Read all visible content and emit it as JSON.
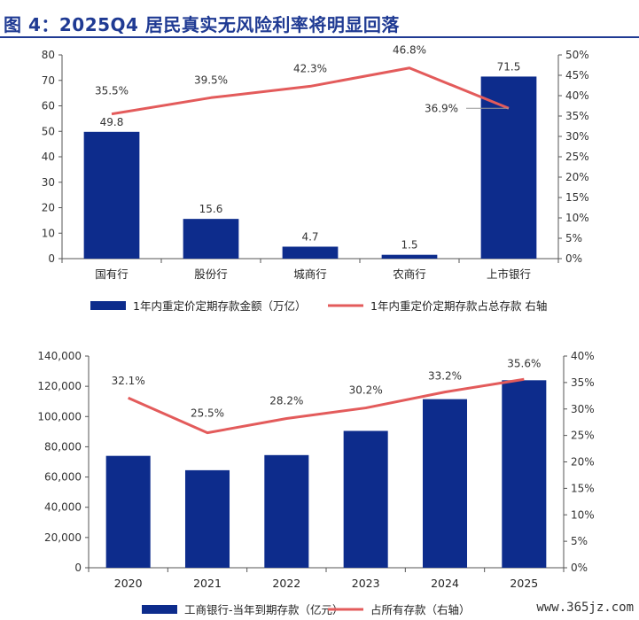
{
  "figure_title": "图 4：2025Q4 居民真实无风险利率将明显回落",
  "watermark": "www.365jz.com",
  "colors": {
    "bar": "#0d2c8c",
    "line": "#e35b5b",
    "title": "#1f3a93",
    "axis": "#555555"
  },
  "chart_data": [
    {
      "type": "bar",
      "categories": [
        "国有行",
        "股份行",
        "城商行",
        "农商行",
        "上市银行"
      ],
      "series": [
        {
          "name": "1年内重定价定期存款金额（万亿）",
          "axis": "left",
          "values": [
            49.8,
            15.6,
            4.7,
            1.5,
            71.5
          ],
          "labels": [
            "49.8",
            "15.6",
            "4.7",
            "1.5",
            "71.5"
          ]
        },
        {
          "name": "1年内重定价定期存款占总存款 右轴",
          "type": "line",
          "axis": "right",
          "values": [
            35.5,
            39.5,
            42.3,
            46.8,
            36.9
          ],
          "labels": [
            "35.5%",
            "39.5%",
            "42.3%",
            "46.8%",
            "36.9%"
          ]
        }
      ],
      "left_ticks": [
        "0",
        "10",
        "20",
        "30",
        "40",
        "50",
        "60",
        "70",
        "80"
      ],
      "right_ticks": [
        "0%",
        "5%",
        "10%",
        "15%",
        "20%",
        "25%",
        "30%",
        "35%",
        "40%",
        "45%",
        "50%"
      ],
      "ylim_left": [
        0,
        80
      ],
      "ylim_right": [
        0,
        50
      ],
      "legend": "bottom"
    },
    {
      "type": "bar",
      "categories": [
        "2020",
        "2021",
        "2022",
        "2023",
        "2024",
        "2025"
      ],
      "series": [
        {
          "name": "工商银行-当年到期存款（亿元）",
          "axis": "left",
          "values": [
            74000,
            64500,
            74500,
            90500,
            111500,
            124000
          ]
        },
        {
          "name": "占所有存款（右轴）",
          "type": "line",
          "axis": "right",
          "values": [
            32.1,
            25.5,
            28.2,
            30.2,
            33.2,
            35.6
          ],
          "labels": [
            "32.1%",
            "25.5%",
            "28.2%",
            "30.2%",
            "33.2%",
            "35.6%"
          ]
        }
      ],
      "left_ticks": [
        "0",
        "20,000",
        "40,000",
        "60,000",
        "80,000",
        "100,000",
        "120,000",
        "140,000"
      ],
      "right_ticks": [
        "0%",
        "5%",
        "10%",
        "15%",
        "20%",
        "25%",
        "30%",
        "35%",
        "40%"
      ],
      "ylim_left": [
        0,
        140000
      ],
      "ylim_right": [
        0,
        40
      ],
      "legend": "bottom"
    }
  ]
}
